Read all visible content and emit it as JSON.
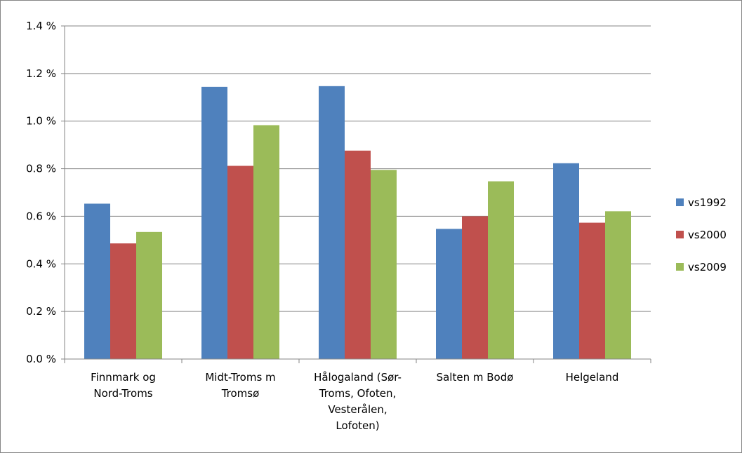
{
  "chart_data": {
    "type": "bar",
    "categories": [
      [
        "Finnmark og",
        "Nord-Troms"
      ],
      [
        "Midt-Troms m",
        "Tromsø"
      ],
      [
        "Hålogaland (Sør-",
        "Troms, Ofoten,",
        "Vesterålen,",
        "Lofoten)"
      ],
      [
        "Salten m Bodø"
      ],
      [
        "Helgeland"
      ]
    ],
    "series": [
      {
        "name": "vs1992",
        "color": "#4F81BD",
        "values": [
          0.653,
          1.144,
          1.147,
          0.547,
          0.823
        ]
      },
      {
        "name": "vs2000",
        "color": "#C0504D",
        "values": [
          0.486,
          0.812,
          0.876,
          0.6,
          0.573
        ]
      },
      {
        "name": "vs2009",
        "color": "#9BBB59",
        "values": [
          0.534,
          0.983,
          0.795,
          0.747,
          0.621
        ]
      }
    ],
    "y_ticks": [
      "0.0 %",
      "0.2 %",
      "0.4 %",
      "0.6 %",
      "0.8 %",
      "1.0 %",
      "1.2 %",
      "1.4 %"
    ],
    "ylim": [
      0,
      1.4
    ],
    "y_unit": "%",
    "grid": true,
    "legend_position": "right",
    "title": "",
    "xlabel": "",
    "ylabel": ""
  }
}
